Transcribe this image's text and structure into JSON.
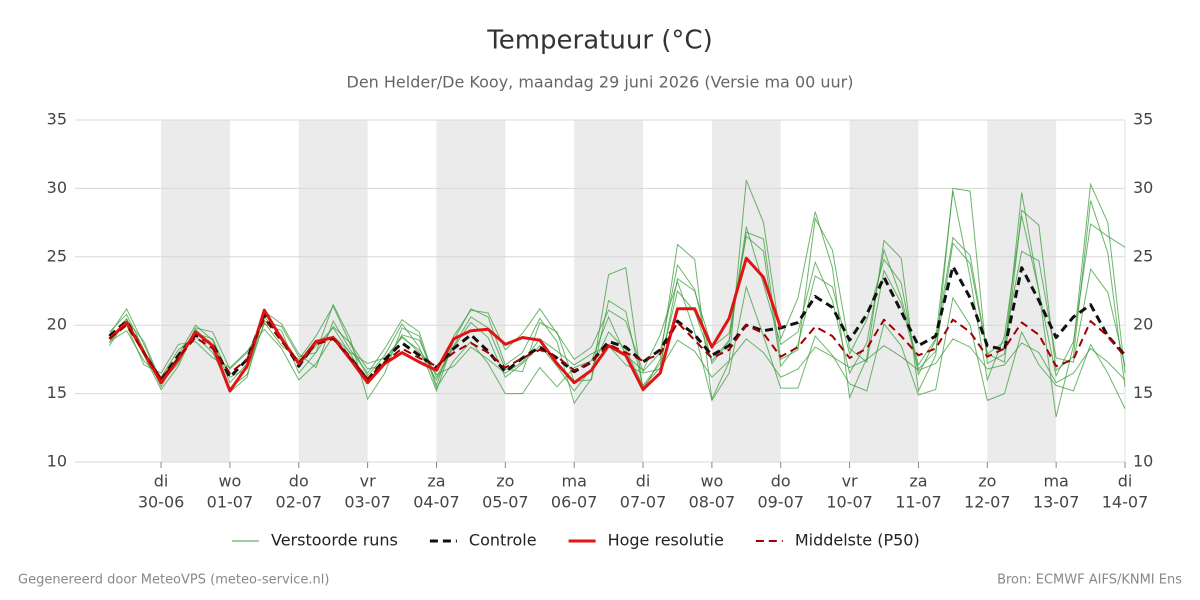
{
  "chart_data": {
    "type": "line",
    "title": "Temperatuur (°C)",
    "subtitle": "Den Helder/De Kooy, maandag 29 juni 2026 (Versie ma 00 uur)",
    "x": [
      0.25,
      0.5,
      0.75,
      1,
      1.25,
      1.5,
      1.75,
      2,
      2.25,
      2.5,
      2.75,
      3,
      3.25,
      3.5,
      3.75,
      4,
      4.25,
      4.5,
      4.75,
      5,
      5.25,
      5.5,
      5.75,
      6,
      6.25,
      6.5,
      6.75,
      7,
      7.25,
      7.5,
      7.75,
      8,
      8.25,
      8.5,
      8.75,
      9,
      9.25,
      9.5,
      9.75,
      10,
      10.25,
      10.5,
      10.75,
      11,
      11.25,
      11.5,
      11.75,
      12,
      12.25,
      12.5,
      12.75,
      13,
      13.25,
      13.5,
      13.75,
      14,
      14.25,
      14.5,
      14.75,
      15
    ],
    "xlim": [
      -0.25,
      15
    ],
    "xticks": [
      {
        "value": 1,
        "label": "di",
        "date": "30-06"
      },
      {
        "value": 2,
        "label": "wo",
        "date": "01-07"
      },
      {
        "value": 3,
        "label": "do",
        "date": "02-07"
      },
      {
        "value": 4,
        "label": "vr",
        "date": "03-07"
      },
      {
        "value": 5,
        "label": "za",
        "date": "04-07"
      },
      {
        "value": 6,
        "label": "zo",
        "date": "05-07"
      },
      {
        "value": 7,
        "label": "ma",
        "date": "06-07"
      },
      {
        "value": 8,
        "label": "di",
        "date": "07-07"
      },
      {
        "value": 9,
        "label": "wo",
        "date": "08-07"
      },
      {
        "value": 10,
        "label": "do",
        "date": "09-07"
      },
      {
        "value": 11,
        "label": "vr",
        "date": "10-07"
      },
      {
        "value": 12,
        "label": "za",
        "date": "11-07"
      },
      {
        "value": 13,
        "label": "zo",
        "date": "12-07"
      },
      {
        "value": 14,
        "label": "ma",
        "date": "13-07"
      },
      {
        "value": 15,
        "label": "di",
        "date": "14-07"
      }
    ],
    "ylim": [
      10,
      35
    ],
    "yticks": [
      10,
      15,
      20,
      25,
      30,
      35
    ],
    "grid": true,
    "series": [
      {
        "name": "Verstoorde runs",
        "color": "#3c9c3c",
        "members": [
          [
            19.5,
            20.8,
            18.2,
            15.5,
            17.8,
            20.0,
            18.9,
            15.8,
            17.2,
            20.6,
            19.2,
            17.0,
            18.5,
            19.8,
            17.9,
            15.9,
            17.4,
            19.2,
            18.0,
            16.0,
            18.4,
            20.2,
            19.1,
            16.2,
            17.2,
            18.5,
            17.0,
            15.2,
            16.8,
            19.5,
            18.2,
            15.6,
            17.2,
            22.5,
            21.0,
            17.4,
            18.9,
            27.2,
            23.0,
            18.6,
            19.5,
            24.6,
            21.8,
            16.5,
            18.7,
            25.5,
            22.0,
            17.1,
            19.0,
            29.8,
            23.5,
            16.0,
            19.2,
            28.0,
            22.5,
            16.3,
            18.8,
            27.4,
            26.5,
            25.7
          ],
          [
            18.8,
            19.6,
            17.4,
            16.2,
            18.2,
            19.2,
            18.0,
            15.4,
            16.4,
            20.2,
            18.5,
            17.5,
            19.2,
            21.4,
            18.6,
            16.3,
            17.8,
            20.1,
            18.4,
            15.2,
            18.9,
            21.2,
            20.6,
            17.1,
            18.0,
            20.5,
            18.8,
            14.3,
            16.1,
            23.7,
            24.2,
            15.2,
            17.5,
            25.9,
            24.8,
            14.6,
            17.3,
            30.6,
            27.5,
            19.0,
            22.0,
            28.3,
            24.2,
            14.7,
            17.6,
            26.2,
            24.9,
            15.2,
            17.8,
            30.0,
            29.8,
            17.2,
            17.9,
            29.7,
            22.5,
            13.3,
            18.5,
            30.3,
            27.5,
            16.5
          ],
          [
            19.3,
            21.2,
            18.6,
            15.8,
            17.2,
            19.8,
            19.5,
            16.8,
            18.0,
            20.3,
            19.9,
            17.7,
            18.0,
            21.5,
            19.0,
            14.6,
            16.5,
            19.8,
            19.2,
            15.4,
            17.4,
            18.8,
            17.2,
            15.0,
            15.0,
            16.9,
            15.5,
            16.9,
            17.4,
            20.6,
            17.8,
            16.7,
            19.3,
            23.2,
            19.5,
            14.5,
            16.5,
            22.8,
            19.2,
            15.4,
            15.4,
            19.2,
            17.8,
            15.7,
            15.2,
            20.1,
            18.5,
            14.9,
            15.3,
            22.0,
            20.0,
            14.5,
            15.0,
            19.5,
            17.1,
            15.6,
            15.2,
            18.6,
            16.5,
            13.9
          ],
          [
            18.7,
            20.5,
            17.8,
            15.3,
            17.0,
            19.7,
            18.5,
            15.1,
            16.2,
            21.0,
            20.1,
            17.9,
            16.9,
            20.3,
            18.2,
            16.5,
            18.3,
            20.4,
            19.5,
            15.6,
            19.2,
            21.1,
            20.9,
            18.2,
            19.4,
            21.2,
            19.4,
            17.5,
            18.4,
            21.1,
            20.3,
            16.6,
            18.0,
            24.4,
            22.6,
            17.2,
            18.8,
            26.8,
            26.3,
            17.5,
            18.2,
            27.8,
            25.5,
            18.3,
            17.3,
            24.0,
            21.6,
            16.8,
            18.1,
            26.0,
            24.5,
            17.9,
            17.3,
            28.4,
            27.3,
            16.7,
            17.7,
            29.1,
            25.3,
            15.5
          ],
          [
            19.1,
            20.0,
            17.1,
            16.5,
            18.6,
            18.8,
            17.6,
            16.9,
            18.1,
            19.7,
            18.3,
            16.0,
            17.2,
            19.2,
            18.0,
            17.2,
            17.6,
            19.1,
            18.2,
            16.4,
            17.0,
            18.4,
            17.5,
            16.5,
            17.3,
            19.0,
            18.1,
            17.1,
            17.9,
            18.5,
            17.1,
            16.5,
            16.8,
            18.9,
            18.1,
            16.2,
            17.4,
            19.0,
            18.0,
            16.2,
            16.8,
            18.4,
            17.7,
            16.9,
            17.5,
            18.5,
            17.7,
            16.7,
            17.2,
            19.0,
            18.4,
            16.8,
            17.1,
            18.7,
            18.0,
            15.8,
            16.5,
            18.3,
            17.3,
            16.0
          ],
          [
            18.5,
            20.4,
            18.8,
            15.9,
            17.5,
            19.4,
            19.0,
            16.2,
            16.8,
            20.1,
            19.6,
            16.5,
            18.0,
            19.9,
            18.7,
            16.8,
            17.1,
            19.3,
            18.9,
            16.2,
            18.5,
            20.6,
            19.8,
            16.8,
            16.6,
            20.2,
            19.5,
            15.9,
            16.0,
            21.8,
            21.0,
            15.5,
            16.9,
            23.4,
            22.5,
            18.4,
            19.4,
            26.5,
            25.4,
            17.0,
            18.6,
            23.6,
            22.8,
            17.9,
            20.4,
            24.8,
            23.1,
            16.4,
            18.9,
            26.4,
            25.1,
            17.9,
            18.8,
            25.4,
            24.7,
            17.6,
            17.3,
            24.1,
            22.4,
            17.0
          ]
        ]
      },
      {
        "name": "Controle",
        "color": "#111111",
        "dash": true,
        "width": 3,
        "values": [
          19.2,
          20.3,
          18.0,
          16.0,
          17.8,
          19.3,
          18.6,
          16.2,
          17.5,
          20.8,
          19.0,
          17.0,
          18.8,
          19.1,
          17.6,
          16.0,
          17.5,
          18.7,
          17.8,
          16.9,
          18.3,
          19.3,
          18.1,
          16.6,
          17.6,
          18.4,
          17.6,
          16.6,
          17.3,
          18.8,
          18.4,
          17.3,
          18.2,
          20.3,
          19.3,
          17.8,
          18.5,
          20.0,
          19.6,
          19.8,
          20.2,
          22.1,
          21.3,
          18.9,
          20.8,
          23.5,
          21.0,
          18.5,
          19.2,
          24.3,
          22.0,
          18.5,
          18.2,
          24.2,
          21.8,
          19.1,
          20.6,
          21.5,
          19.2,
          17.8
        ]
      },
      {
        "name": "Hoge resolutie",
        "color": "#e01414",
        "dash": false,
        "width": 3,
        "values": [
          19.0,
          20.2,
          18.0,
          15.8,
          17.5,
          19.5,
          18.5,
          15.2,
          17.0,
          21.1,
          19.0,
          17.2,
          18.8,
          19.1,
          17.5,
          15.8,
          17.2,
          18.0,
          17.3,
          16.7,
          19.0,
          19.6,
          19.7,
          18.6,
          19.1,
          18.9,
          17.2,
          15.8,
          16.7,
          18.5,
          17.8,
          15.3,
          16.5,
          21.2,
          21.2,
          18.4,
          20.5,
          24.9,
          23.5,
          19.8,
          null,
          null,
          null,
          null,
          null,
          null,
          null,
          null,
          null,
          null,
          null,
          null,
          null,
          null,
          null,
          null,
          null,
          null,
          null,
          null
        ]
      },
      {
        "name": "Middelste (P50)",
        "color": "#a00000",
        "dash": true,
        "width": 2,
        "values": [
          19.0,
          20.0,
          18.0,
          16.1,
          17.6,
          19.1,
          18.3,
          16.5,
          17.5,
          20.5,
          18.8,
          17.3,
          18.6,
          19.0,
          17.6,
          16.1,
          17.3,
          18.3,
          17.6,
          17.0,
          18.0,
          18.7,
          18.0,
          16.9,
          17.6,
          18.2,
          17.7,
          16.7,
          17.3,
          18.6,
          18.0,
          17.4,
          17.9,
          20.2,
          18.9,
          17.6,
          18.2,
          20.0,
          19.4,
          17.7,
          18.4,
          19.9,
          19.2,
          17.6,
          18.3,
          20.4,
          19.2,
          17.8,
          18.3,
          20.4,
          19.5,
          17.7,
          18.3,
          20.2,
          19.3,
          17.0,
          17.5,
          20.3,
          19.2,
          17.7
        ]
      }
    ],
    "footer_left": "Gegenereerd door MeteoVPS (meteo-service.nl)",
    "footer_right": "Bron: ECMWF AIFS/KNMI Ens"
  }
}
